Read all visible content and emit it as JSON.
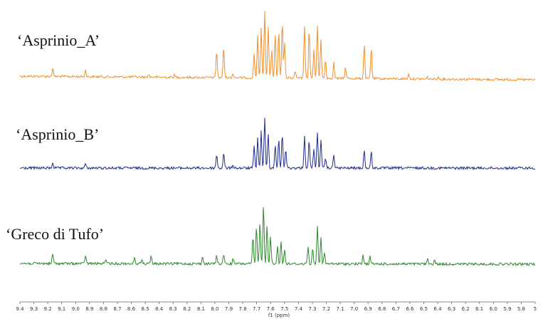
{
  "chart_data": {
    "type": "line",
    "xlabel": "f1 (ppm)",
    "xlim": [
      9.4,
      5.0
    ],
    "x_reversed": true,
    "tick_labels": [
      "9.4",
      "9.3",
      "9.2",
      "9.1",
      "9.0",
      "8.9",
      "8.8",
      "8.7",
      "8.6",
      "8.5",
      "8.4",
      "8.3",
      "8.2",
      "8.1",
      "8.0",
      "7.9",
      "7.8",
      "7.7",
      "7.6",
      "7.5",
      "7.4",
      "7.3",
      "7.2",
      "7.1",
      "7.0",
      "6.9",
      "6.8",
      "6.7",
      "6.6",
      "6.5",
      "6.4",
      "6.3",
      "6.2",
      "6.1",
      "6.0",
      "5.9",
      "5.8",
      "5"
    ],
    "series": [
      {
        "name": "‘Asprinio_A’",
        "color": "#f28e2b",
        "peaks": [
          {
            "ppm": 9.12,
            "h": 12
          },
          {
            "ppm": 8.84,
            "h": 9
          },
          {
            "ppm": 8.3,
            "h": 4
          },
          {
            "ppm": 8.08,
            "h": 3
          },
          {
            "ppm": 7.72,
            "h": 38
          },
          {
            "ppm": 7.66,
            "h": 42
          },
          {
            "ppm": 7.58,
            "h": 6
          },
          {
            "ppm": 7.4,
            "h": 34
          },
          {
            "ppm": 7.37,
            "h": 58
          },
          {
            "ppm": 7.34,
            "h": 70
          },
          {
            "ppm": 7.31,
            "h": 95
          },
          {
            "ppm": 7.28,
            "h": 72
          },
          {
            "ppm": 7.25,
            "h": 40
          },
          {
            "ppm": 7.22,
            "h": 62
          },
          {
            "ppm": 7.19,
            "h": 66
          },
          {
            "ppm": 7.16,
            "h": 80
          },
          {
            "ppm": 7.14,
            "h": 50
          },
          {
            "ppm": 7.05,
            "h": 10
          },
          {
            "ppm": 6.97,
            "h": 75
          },
          {
            "ppm": 6.93,
            "h": 70
          },
          {
            "ppm": 6.89,
            "h": 40
          },
          {
            "ppm": 6.86,
            "h": 74
          },
          {
            "ppm": 6.83,
            "h": 55
          },
          {
            "ppm": 6.79,
            "h": 26
          },
          {
            "ppm": 6.72,
            "h": 22
          },
          {
            "ppm": 6.62,
            "h": 16
          },
          {
            "ppm": 6.46,
            "h": 48
          },
          {
            "ppm": 6.4,
            "h": 44
          },
          {
            "ppm": 6.08,
            "h": 7
          },
          {
            "ppm": 5.92,
            "h": 3
          },
          {
            "ppm": 5.83,
            "h": 3
          }
        ]
      },
      {
        "name": "‘Asprinio_B’",
        "color": "#1f2a8c",
        "peaks": [
          {
            "ppm": 9.12,
            "h": 8
          },
          {
            "ppm": 8.84,
            "h": 6
          },
          {
            "ppm": 7.72,
            "h": 20
          },
          {
            "ppm": 7.66,
            "h": 22
          },
          {
            "ppm": 7.58,
            "h": 5
          },
          {
            "ppm": 7.4,
            "h": 30
          },
          {
            "ppm": 7.37,
            "h": 42
          },
          {
            "ppm": 7.34,
            "h": 52
          },
          {
            "ppm": 7.31,
            "h": 70
          },
          {
            "ppm": 7.28,
            "h": 50
          },
          {
            "ppm": 7.22,
            "h": 34
          },
          {
            "ppm": 7.19,
            "h": 40
          },
          {
            "ppm": 7.16,
            "h": 50
          },
          {
            "ppm": 7.13,
            "h": 28
          },
          {
            "ppm": 6.97,
            "h": 45
          },
          {
            "ppm": 6.93,
            "h": 40
          },
          {
            "ppm": 6.89,
            "h": 28
          },
          {
            "ppm": 6.86,
            "h": 50
          },
          {
            "ppm": 6.83,
            "h": 40
          },
          {
            "ppm": 6.79,
            "h": 14
          },
          {
            "ppm": 6.72,
            "h": 20
          },
          {
            "ppm": 6.46,
            "h": 25
          },
          {
            "ppm": 6.4,
            "h": 23
          }
        ]
      },
      {
        "name": "‘Greco di Tufo’",
        "color": "#2a8a2a",
        "peaks": [
          {
            "ppm": 9.12,
            "h": 14
          },
          {
            "ppm": 8.84,
            "h": 12
          },
          {
            "ppm": 8.67,
            "h": 6
          },
          {
            "ppm": 8.42,
            "h": 8
          },
          {
            "ppm": 8.36,
            "h": 6
          },
          {
            "ppm": 8.28,
            "h": 10
          },
          {
            "ppm": 7.84,
            "h": 10
          },
          {
            "ppm": 7.72,
            "h": 12
          },
          {
            "ppm": 7.66,
            "h": 14
          },
          {
            "ppm": 7.58,
            "h": 6
          },
          {
            "ppm": 7.41,
            "h": 38
          },
          {
            "ppm": 7.38,
            "h": 52
          },
          {
            "ppm": 7.35,
            "h": 60
          },
          {
            "ppm": 7.32,
            "h": 84
          },
          {
            "ppm": 7.29,
            "h": 55
          },
          {
            "ppm": 7.26,
            "h": 40
          },
          {
            "ppm": 7.2,
            "h": 25
          },
          {
            "ppm": 7.17,
            "h": 32
          },
          {
            "ppm": 7.14,
            "h": 20
          },
          {
            "ppm": 6.94,
            "h": 26
          },
          {
            "ppm": 6.9,
            "h": 22
          },
          {
            "ppm": 6.86,
            "h": 55
          },
          {
            "ppm": 6.83,
            "h": 36
          },
          {
            "ppm": 6.8,
            "h": 16
          },
          {
            "ppm": 6.47,
            "h": 12
          },
          {
            "ppm": 6.41,
            "h": 10
          },
          {
            "ppm": 5.92,
            "h": 7
          },
          {
            "ppm": 5.86,
            "h": 6
          }
        ]
      }
    ]
  }
}
